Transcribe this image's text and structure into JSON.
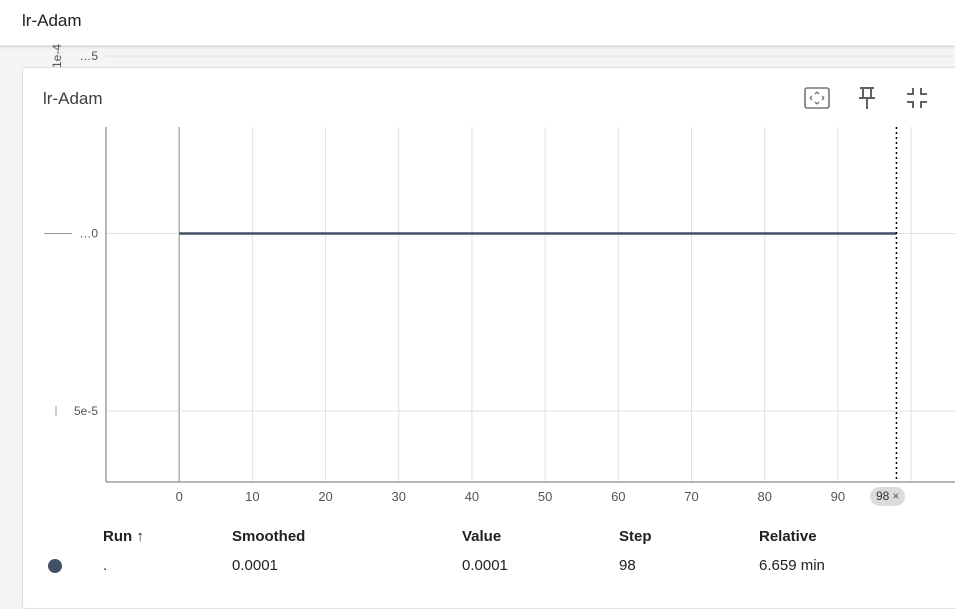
{
  "header": {
    "title": "lr-Adam"
  },
  "card": {
    "title": "lr-Adam",
    "tools": [
      "fit-domain-icon",
      "pin-icon",
      "collapse-icon"
    ]
  },
  "hover": {
    "step_label": "98",
    "close_glyph": "×"
  },
  "colors": {
    "line": "#425066",
    "dot": "#425066",
    "hover_line": "#000000"
  },
  "table": {
    "headers": {
      "run": "Run ↑",
      "smoothed": "Smoothed",
      "value": "Value",
      "step": "Step",
      "relative": "Relative"
    },
    "rows": [
      {
        "run": ".",
        "smoothed": "0.0001",
        "value": "0.0001",
        "step": "98",
        "relative": "6.659 min"
      }
    ]
  },
  "chart_data": {
    "type": "line",
    "title": "lr-Adam",
    "x_ticks": [
      "0",
      "10",
      "20",
      "30",
      "40",
      "50",
      "60",
      "70",
      "80",
      "90"
    ],
    "y_tick_labels": [
      "…5",
      "…0",
      "5e-5"
    ],
    "y_exponent_label": "1e-4",
    "xlim": [
      -10,
      106
    ],
    "ylim": [
      3e-05,
      0.00013
    ],
    "grid": true,
    "series": [
      {
        "x": [
          0,
          98
        ],
        "y": [
          0.0001,
          0.0001
        ]
      }
    ],
    "hover_step": 98
  }
}
